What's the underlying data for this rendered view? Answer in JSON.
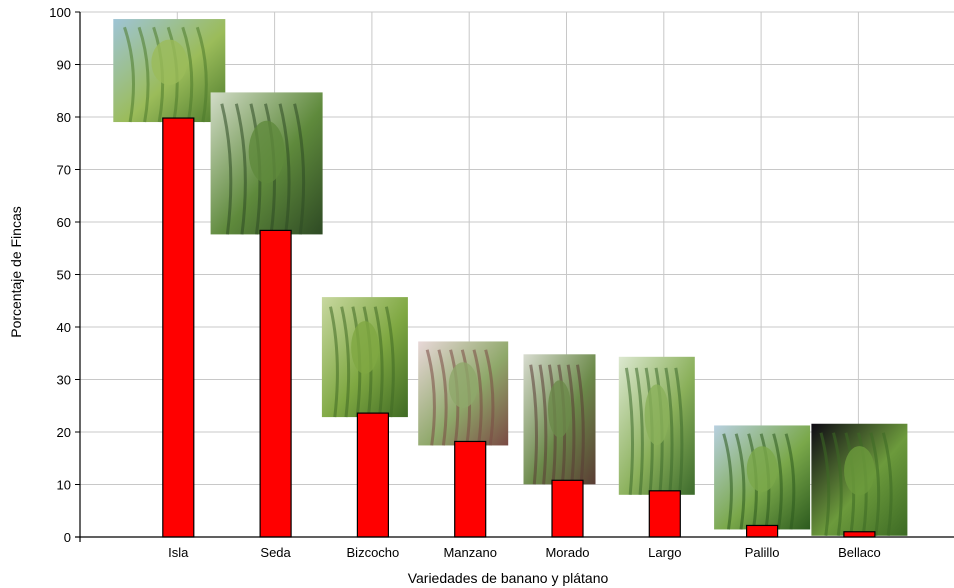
{
  "chart_data": {
    "type": "bar",
    "categories": [
      "Isla",
      "Seda",
      "Bizcocho",
      "Manzano",
      "Morado",
      "Largo",
      "Palillo",
      "Bellaco"
    ],
    "values": [
      79.8,
      58.4,
      23.6,
      18.2,
      10.8,
      8.8,
      2.2,
      1.0
    ],
    "xlabel": "Variedades de banano y plátano",
    "ylabel": "Porcentaje de Fincas",
    "ylim": [
      0,
      100
    ],
    "yticks": [
      0,
      10,
      20,
      30,
      40,
      50,
      60,
      70,
      80,
      90,
      100
    ],
    "grid": true,
    "bar_color": "#ff0000",
    "bar_stroke": "#000000",
    "grid_color": "#c8c8c8",
    "photos": [
      {
        "category": "Isla",
        "description": "banana bunch photo",
        "palette": [
          "#9ec4d6",
          "#9bbc5a",
          "#4c7a2c"
        ]
      },
      {
        "category": "Seda",
        "description": "banana plant photo",
        "palette": [
          "#d2dcc8",
          "#5f8a3c",
          "#2e4a24"
        ]
      },
      {
        "category": "Bizcocho",
        "description": "banana bunch photo",
        "palette": [
          "#c8d8a0",
          "#7fa842",
          "#3f6a24"
        ]
      },
      {
        "category": "Manzano",
        "description": "banana bunch photo",
        "palette": [
          "#e8d8d8",
          "#8fa86a",
          "#7a4a44"
        ]
      },
      {
        "category": "Morado",
        "description": "purple banana bunch photo",
        "palette": [
          "#d8dcd0",
          "#6c8a4a",
          "#5a3c34"
        ]
      },
      {
        "category": "Largo",
        "description": "banana bunch photo",
        "palette": [
          "#dce8d0",
          "#8ab05a",
          "#3c6a2c"
        ]
      },
      {
        "category": "Palillo",
        "description": "banana bunch photo",
        "palette": [
          "#b8d0e0",
          "#7aa84a",
          "#2c5a1e"
        ]
      },
      {
        "category": "Bellaco",
        "description": "green plantains on dark background",
        "palette": [
          "#0e0a14",
          "#6c9a3c",
          "#3c6a24"
        ]
      }
    ]
  }
}
